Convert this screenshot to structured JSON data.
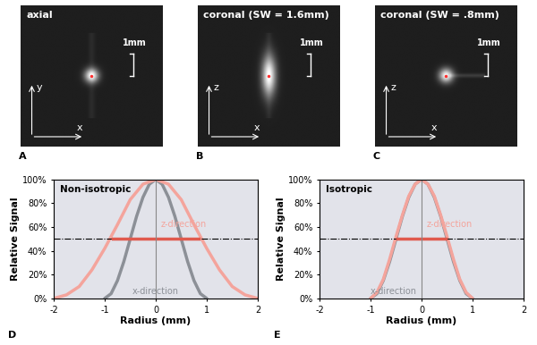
{
  "images": [
    {
      "panel": "A",
      "title": "axial",
      "scale_bar": "1mm",
      "axis_labels": [
        "x",
        "y"
      ]
    },
    {
      "panel": "B",
      "title": "coronal (SW = 1.6mm)",
      "scale_bar": "1mm",
      "axis_labels": [
        "x",
        "z"
      ]
    },
    {
      "panel": "C",
      "title": "coronal (SW = .8mm)",
      "scale_bar": "1mm",
      "axis_labels": [
        "x",
        "z"
      ]
    }
  ],
  "chart_data": [
    {
      "panel": "D",
      "type": "line",
      "annotations": [
        "Non-isotropic"
      ],
      "xlabel": "Radius (mm)",
      "ylabel": "Relative Signal",
      "xlim": [
        -2,
        2
      ],
      "xticks": [
        -2,
        -1,
        0,
        1,
        2
      ],
      "ylim": [
        0,
        100
      ],
      "yticks": [
        {
          "value": 0,
          "label": "0%"
        },
        {
          "value": 20,
          "label": "20%"
        },
        {
          "value": 40,
          "label": "40%"
        },
        {
          "value": 60,
          "label": "60%"
        },
        {
          "value": 80,
          "label": "80%"
        },
        {
          "value": 100,
          "label": "100%"
        }
      ],
      "reference_line": 50,
      "fwhm": {
        "x": [
          -0.85,
          0.85
        ],
        "y": 50,
        "color": "#e05a4e"
      },
      "series": [
        {
          "name": "x-direction",
          "color": "#8c9097",
          "x": [
            -1,
            -0.875,
            -0.75,
            -0.625,
            -0.5,
            -0.375,
            -0.25,
            -0.125,
            0,
            0.125,
            0.25,
            0.375,
            0.5,
            0.625,
            0.75,
            0.875,
            1
          ],
          "values": [
            0,
            4,
            15,
            31,
            50,
            69,
            85,
            96,
            100,
            96,
            85,
            69,
            50,
            31,
            15,
            4,
            0
          ]
        },
        {
          "name": "z-direction",
          "color": "#f4a49c",
          "x": [
            -2,
            -1.75,
            -1.5,
            -1.25,
            -1,
            -0.75,
            -0.5,
            -0.25,
            0,
            0.25,
            0.5,
            0.75,
            1,
            1.25,
            1.5,
            1.75,
            2
          ],
          "values": [
            0,
            3,
            10,
            24,
            42,
            62,
            83,
            96,
            100,
            96,
            83,
            62,
            42,
            24,
            10,
            3,
            0
          ]
        }
      ]
    },
    {
      "panel": "E",
      "type": "line",
      "annotations": [
        "Isotropic"
      ],
      "xlabel": "Radius (mm)",
      "ylabel": "Relative Signal",
      "xlim": [
        -2,
        2
      ],
      "xticks": [
        -2,
        -1,
        0,
        1,
        2
      ],
      "ylim": [
        0,
        100
      ],
      "yticks": [
        {
          "value": 0,
          "label": "0%"
        },
        {
          "value": 20,
          "label": "20%"
        },
        {
          "value": 40,
          "label": "40%"
        },
        {
          "value": 60,
          "label": "60%"
        },
        {
          "value": 80,
          "label": "80%"
        },
        {
          "value": 100,
          "label": "100%"
        }
      ],
      "reference_line": 50,
      "fwhm": {
        "x": [
          -0.48,
          0.48
        ],
        "y": 50,
        "color": "#e05a4e"
      },
      "series": [
        {
          "name": "x-direction",
          "color": "#8c9097",
          "x": [
            -1,
            -0.875,
            -0.75,
            -0.625,
            -0.5,
            -0.375,
            -0.25,
            -0.125,
            0,
            0.125,
            0.25,
            0.375,
            0.5,
            0.625,
            0.75,
            0.875,
            1
          ],
          "values": [
            0,
            4,
            15,
            31,
            50,
            69,
            85,
            96,
            100,
            96,
            85,
            69,
            50,
            31,
            15,
            4,
            0
          ]
        },
        {
          "name": "z-direction",
          "color": "#f4a49c",
          "x": [
            -1,
            -0.875,
            -0.75,
            -0.625,
            -0.5,
            -0.375,
            -0.25,
            -0.125,
            0,
            0.125,
            0.25,
            0.375,
            0.5,
            0.625,
            0.75,
            0.875,
            1
          ],
          "values": [
            0,
            5,
            16,
            33,
            52,
            70,
            86,
            96,
            100,
            96,
            86,
            70,
            52,
            33,
            16,
            5,
            0
          ]
        }
      ]
    }
  ]
}
